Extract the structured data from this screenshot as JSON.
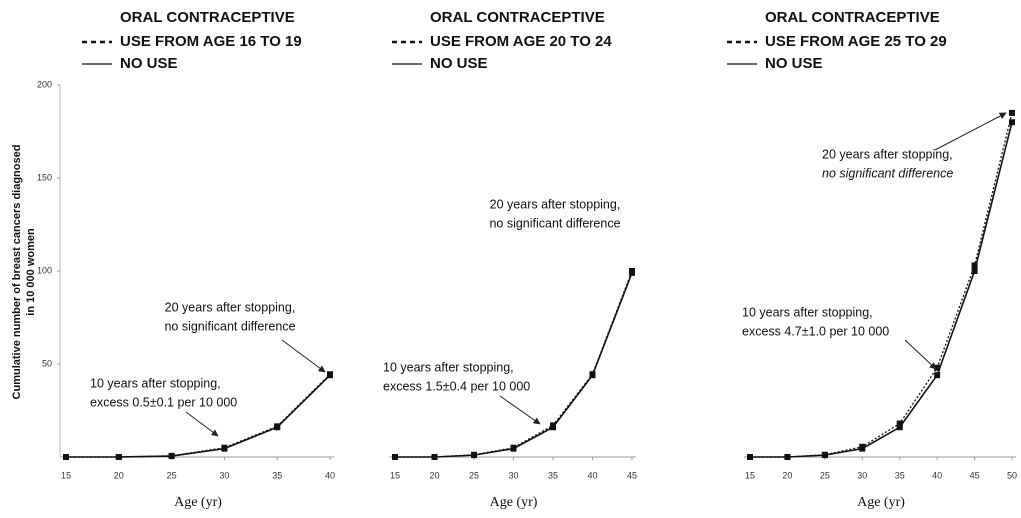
{
  "chart_data": [
    {
      "type": "line",
      "legend_title": "ORAL CONTRACEPTIVE",
      "y_label": [
        "Cumulative number of breast cancers diagnosed",
        "in 10 000 women"
      ],
      "x_label": "Age (yr)",
      "x": [
        15,
        20,
        25,
        30,
        35,
        40
      ],
      "xlim": [
        15,
        40
      ],
      "xticks": [
        15,
        20,
        25,
        30,
        35,
        40
      ],
      "ylim": [
        0,
        200
      ],
      "yticks": [
        50,
        100,
        150,
        200
      ],
      "series": [
        {
          "name": "USE FROM AGE 16 TO 19",
          "color": "#111111",
          "dash": true,
          "values": [
            0,
            0,
            0.6,
            5,
            16.5,
            44.5
          ]
        },
        {
          "name": "NO USE",
          "color": "#111111",
          "dash": false,
          "values": [
            0,
            0,
            0.5,
            4.5,
            16,
            44
          ]
        }
      ],
      "annotations": [
        {
          "lines": [
            "20 years after stopping,",
            "no significant difference"
          ]
        },
        {
          "lines": [
            "10 years after stopping,",
            "excess 0.5±0.1 per 10 000"
          ]
        }
      ]
    },
    {
      "type": "line",
      "legend_title": "ORAL CONTRACEPTIVE",
      "x_label": "Age (yr)",
      "x": [
        15,
        20,
        25,
        30,
        35,
        40,
        45
      ],
      "xlim": [
        15,
        45
      ],
      "xticks": [
        15,
        20,
        25,
        30,
        35,
        40,
        45
      ],
      "ylim": [
        0,
        200
      ],
      "series": [
        {
          "name": "USE FROM AGE 20 TO 24",
          "color": "#111111",
          "dash": true,
          "values": [
            0,
            0,
            1.2,
            5,
            17,
            44.5,
            100
          ]
        },
        {
          "name": "NO USE",
          "color": "#111111",
          "dash": false,
          "values": [
            0,
            0,
            1,
            4.5,
            16,
            44,
            99
          ]
        }
      ],
      "annotations": [
        {
          "lines": [
            "20 years after stopping,",
            "no significant difference"
          ]
        },
        {
          "lines": [
            "10 years after stopping,",
            "excess 1.5±0.4 per 10 000"
          ]
        }
      ]
    },
    {
      "type": "line",
      "legend_title": "ORAL CONTRACEPTIVE",
      "x_label": "Age (yr)",
      "x": [
        15,
        20,
        25,
        30,
        35,
        40,
        45,
        50
      ],
      "xlim": [
        15,
        50
      ],
      "xticks": [
        15,
        20,
        25,
        30,
        35,
        40,
        45,
        50
      ],
      "ylim": [
        0,
        200
      ],
      "series": [
        {
          "name": "USE FROM AGE 25 TO 29",
          "color": "#111111",
          "dash": true,
          "values": [
            0,
            0,
            1.2,
            5.5,
            18,
            48,
            103,
            185
          ]
        },
        {
          "name": "NO USE",
          "color": "#111111",
          "dash": false,
          "values": [
            0,
            0,
            1,
            4.5,
            16,
            44,
            100,
            180
          ]
        }
      ],
      "annotations": [
        {
          "lines": [
            "20 years after stopping,",
            "no significant difference"
          ]
        },
        {
          "lines": [
            "10 years after stopping,",
            "excess 4.7±1.0 per 10 000"
          ]
        }
      ]
    }
  ]
}
